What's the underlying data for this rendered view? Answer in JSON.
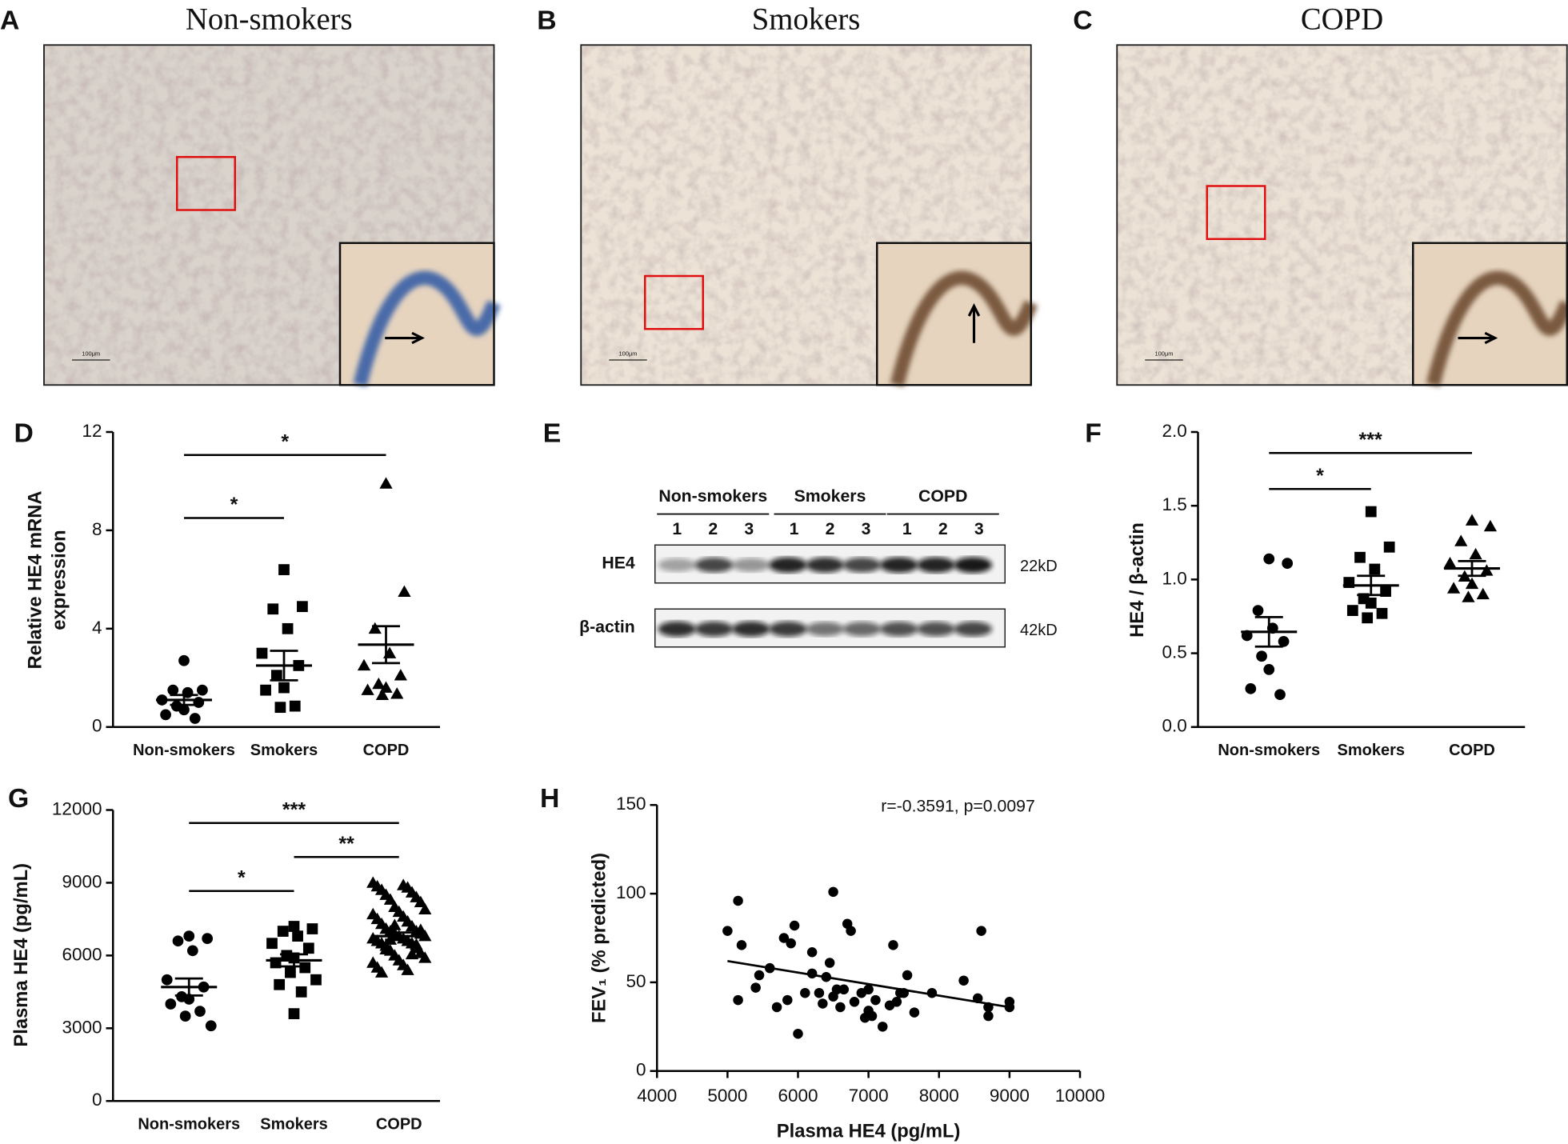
{
  "histology": [
    {
      "panel": "A",
      "title": "Non-smokers",
      "scale": "100μm"
    },
    {
      "panel": "B",
      "title": "Smokers",
      "scale": "100μm"
    },
    {
      "panel": "C",
      "title": "COPD",
      "scale": "100μm"
    }
  ],
  "blot": {
    "panel": "E",
    "groups": [
      "Non-smokers",
      "Smokers",
      "COPD"
    ],
    "lanes": [
      "1",
      "2",
      "3"
    ],
    "rows": [
      {
        "label": "HE4",
        "size": "22kD"
      },
      {
        "label": "β-actin",
        "size": "42kD"
      }
    ]
  },
  "chart_data": [
    {
      "type": "dotplot",
      "panel": "D",
      "ylabel": [
        "Relative HE4 mRNA",
        "expression"
      ],
      "categories": [
        "Non-smokers",
        "Smokers",
        "COPD"
      ],
      "groups": [
        {
          "marker": "circle",
          "values": [
            2.7,
            1.5,
            1.5,
            1.4,
            1.1,
            1.0,
            0.85,
            0.7,
            0.5,
            0.35
          ],
          "mean": 1.1,
          "sem": 0.2
        },
        {
          "marker": "square",
          "values": [
            6.4,
            4.9,
            4.8,
            4.0,
            3.0,
            2.5,
            2.1,
            1.6,
            1.5,
            0.85,
            0.8
          ],
          "mean": 2.5,
          "sem": 0.6
        },
        {
          "marker": "triangle",
          "values": [
            9.9,
            5.5,
            4.0,
            3.0,
            2.5,
            2.1,
            1.75,
            1.6,
            1.5,
            1.35,
            1.3
          ],
          "mean": 3.35,
          "sem": 0.75
        }
      ],
      "ylim": [
        0,
        12
      ],
      "yticks": [
        0,
        4,
        8,
        12
      ],
      "brackets": [
        {
          "from": 0,
          "to": 2,
          "label": "*"
        },
        {
          "from": 0,
          "to": 1,
          "label": "*"
        }
      ]
    },
    {
      "type": "dotplot",
      "panel": "F",
      "ylabel": [
        "HE4 / β-actin"
      ],
      "categories": [
        "Non-smokers",
        "Smokers",
        "COPD"
      ],
      "groups": [
        {
          "marker": "circle",
          "values": [
            1.14,
            1.11,
            0.79,
            0.67,
            0.62,
            0.58,
            0.48,
            0.39,
            0.26,
            0.22
          ],
          "mean": 0.645,
          "sem": 0.1
        },
        {
          "marker": "square",
          "values": [
            1.46,
            1.22,
            1.15,
            1.07,
            0.98,
            0.92,
            0.87,
            0.84,
            0.79,
            0.77,
            0.74
          ],
          "mean": 0.96,
          "sem": 0.065
        },
        {
          "marker": "triangle",
          "values": [
            1.4,
            1.36,
            1.26,
            1.17,
            1.11,
            1.06,
            1.02,
            0.97,
            0.94,
            0.9,
            0.88
          ],
          "mean": 1.075,
          "sem": 0.05
        }
      ],
      "ylim": [
        0,
        2
      ],
      "yticks": [
        {
          "value": 0,
          "label": "0.0"
        },
        {
          "value": 0.5,
          "label": "0.5"
        },
        {
          "value": 1,
          "label": "1.0"
        },
        {
          "value": 1.5,
          "label": "1.5"
        },
        {
          "value": 2,
          "label": "2.0"
        }
      ],
      "brackets": [
        {
          "from": 0,
          "to": 2,
          "label": "***"
        },
        {
          "from": 0,
          "to": 1,
          "label": "*"
        }
      ]
    },
    {
      "type": "dotplot",
      "panel": "G",
      "ylabel": [
        "Plasma HE4  (pg/mL)"
      ],
      "categories": [
        "Non-smokers",
        "Smokers",
        "COPD"
      ],
      "groups": [
        {
          "marker": "circle",
          "values": [
            6800,
            6700,
            6600,
            6200,
            5000,
            4700,
            4300,
            4200,
            4000,
            3700,
            3500,
            3100
          ],
          "mean": 4700,
          "sem": 350
        },
        {
          "marker": "square",
          "values": [
            7200,
            7100,
            7000,
            6800,
            6500,
            6300,
            6000,
            5900,
            5700,
            5500,
            5300,
            5000,
            4800,
            4500,
            3600
          ],
          "mean": 5800,
          "sem": 250
        },
        {
          "marker": "triangle",
          "values": [
            9000,
            8900,
            8850,
            8800,
            8700,
            8600,
            8500,
            8400,
            8300,
            8200,
            8000,
            7900,
            7800,
            7700,
            7600,
            7500,
            7400,
            7300,
            7200,
            7100,
            7000,
            7000,
            6900,
            6900,
            6800,
            6800,
            6700,
            6700,
            6600,
            6600,
            6500,
            6500,
            6400,
            6300,
            6200,
            6100,
            6000,
            5900,
            5800,
            5700,
            5600,
            5500,
            5400,
            5300,
            6050,
            6250,
            6450,
            6650,
            7050,
            7250
          ],
          "mean": 6800,
          "sem": 150
        }
      ],
      "ylim": [
        0,
        12000
      ],
      "yticks": [
        0,
        3000,
        6000,
        9000,
        12000
      ],
      "brackets": [
        {
          "from": 0,
          "to": 2,
          "label": "***"
        },
        {
          "from": 1,
          "to": 2,
          "label": "**"
        },
        {
          "from": 0,
          "to": 1,
          "label": "*"
        }
      ]
    },
    {
      "type": "scatter",
      "panel": "H",
      "annotation": "r=-0.3591, p=0.0097",
      "xlabel": "Plasma HE4  (pg/mL)",
      "ylabel": "FEV₁ (% predicted)",
      "x": [
        5000,
        5150,
        5200,
        5150,
        5400,
        5450,
        5600,
        5700,
        5800,
        5850,
        5900,
        5950,
        6000,
        6100,
        6200,
        6300,
        6350,
        6400,
        6450,
        6500,
        6500,
        6550,
        6600,
        6650,
        6700,
        6750,
        6800,
        6900,
        6950,
        7000,
        7050,
        7100,
        7200,
        7300,
        7350,
        7400,
        7450,
        7500,
        7550,
        7650,
        7900,
        8350,
        8550,
        8600,
        8700,
        8700,
        9000,
        9000,
        7000,
        6200
      ],
      "y": [
        79,
        96,
        71,
        40,
        47,
        54,
        58,
        36,
        75,
        40,
        72,
        82,
        21,
        44,
        67,
        44,
        38,
        53,
        61,
        101,
        42,
        46,
        36,
        46,
        83,
        79,
        39,
        44,
        30,
        34,
        31,
        40,
        25,
        37,
        71,
        39,
        44,
        44,
        54,
        33,
        44,
        51,
        41,
        79,
        31,
        36,
        39,
        36,
        46,
        55
      ],
      "fit": {
        "x": [
          5000,
          9000
        ],
        "y": [
          62,
          36
        ]
      },
      "xlim": [
        4000,
        10000
      ],
      "xticks": [
        4000,
        5000,
        6000,
        7000,
        8000,
        9000,
        10000
      ],
      "ylim": [
        0,
        150
      ],
      "yticks": [
        0,
        50,
        100,
        150
      ]
    }
  ]
}
